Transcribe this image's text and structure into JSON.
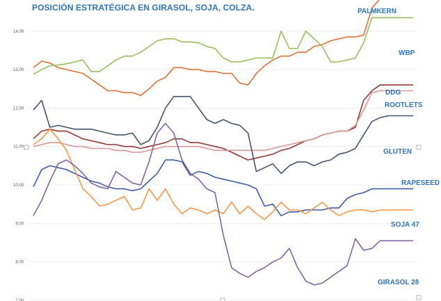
{
  "chart_data": {
    "type": "line",
    "title": "POSICIÓN ESTRATÉGICA EN GIRASOL, SOJA, COLZA.",
    "xlabel": "",
    "ylabel": "",
    "ylim": [
      7.0,
      14.9
    ],
    "yticks": [
      "14,00",
      "13,00",
      "12,00",
      "11,00",
      "10,00",
      "9,00",
      "8,00",
      "7,00"
    ],
    "x": [
      1,
      2,
      3,
      4,
      5,
      6,
      7,
      8,
      9,
      10,
      11,
      12,
      13,
      14,
      15,
      16,
      17,
      18,
      19,
      20,
      21,
      22,
      23,
      24,
      25,
      26,
      27,
      28,
      29,
      30,
      31,
      32,
      33,
      34,
      35,
      36,
      37,
      38,
      39,
      40,
      41,
      42,
      43,
      44,
      45,
      46,
      47
    ],
    "series": [
      {
        "name": "PALMKERN",
        "color": "#e07033",
        "values": [
          13.05,
          13.22,
          13.17,
          13.05,
          13.0,
          12.95,
          12.9,
          12.75,
          12.6,
          12.45,
          12.45,
          12.4,
          12.4,
          12.33,
          12.5,
          12.7,
          12.8,
          13.05,
          13.05,
          13.0,
          13.0,
          12.95,
          12.95,
          12.9,
          12.9,
          12.65,
          12.6,
          12.9,
          13.1,
          13.25,
          13.35,
          13.35,
          13.45,
          13.45,
          13.6,
          13.65,
          13.75,
          13.8,
          13.85,
          13.85,
          13.9,
          14.6,
          14.95,
          14.95,
          14.95,
          14.95,
          14.95
        ]
      },
      {
        "name": "WBP",
        "color": "#9bbb59",
        "values": [
          12.88,
          13.0,
          13.1,
          13.12,
          13.15,
          13.2,
          13.25,
          12.95,
          12.95,
          13.1,
          13.25,
          13.35,
          13.35,
          13.45,
          13.6,
          13.75,
          13.8,
          13.8,
          13.72,
          13.72,
          13.7,
          13.6,
          13.55,
          13.3,
          13.2,
          13.2,
          13.25,
          13.3,
          13.3,
          13.3,
          14.0,
          13.55,
          13.55,
          14.0,
          13.8,
          13.6,
          13.2,
          13.2,
          13.25,
          13.3,
          13.7,
          14.35,
          14.35,
          14.35,
          14.35,
          14.35,
          14.35
        ]
      },
      {
        "name": "DDG",
        "color": "#943634",
        "values": [
          11.2,
          11.4,
          11.45,
          11.4,
          11.4,
          11.3,
          11.2,
          11.15,
          11.1,
          11.05,
          11.05,
          11.0,
          11.0,
          10.95,
          11.0,
          11.05,
          11.1,
          11.2,
          11.2,
          11.1,
          11.1,
          11.05,
          11.0,
          10.95,
          10.85,
          10.75,
          10.65,
          10.7,
          10.75,
          10.8,
          10.9,
          10.95,
          11.05,
          11.15,
          11.2,
          11.3,
          11.35,
          11.4,
          11.4,
          11.5,
          12.2,
          12.45,
          12.6,
          12.6,
          12.6,
          12.6,
          12.6
        ]
      },
      {
        "name": "ROOTLETS",
        "color": "#da9694",
        "values": [
          11.0,
          11.05,
          11.1,
          11.1,
          11.05,
          11.0,
          11.0,
          10.95,
          10.95,
          10.95,
          10.9,
          10.9,
          10.85,
          10.85,
          10.9,
          10.95,
          11.0,
          11.0,
          11.0,
          11.0,
          11.0,
          10.95,
          10.9,
          10.9,
          10.9,
          10.9,
          10.9,
          10.9,
          10.9,
          10.95,
          11.0,
          11.05,
          11.1,
          11.15,
          11.2,
          11.3,
          11.35,
          11.4,
          11.4,
          11.55,
          11.95,
          12.4,
          12.45,
          12.45,
          12.45,
          12.45,
          12.45
        ]
      },
      {
        "name": "GLUTEN",
        "color": "#44546a",
        "values": [
          11.95,
          12.2,
          11.5,
          11.55,
          11.5,
          11.45,
          11.45,
          11.45,
          11.4,
          11.35,
          11.3,
          11.3,
          11.35,
          11.05,
          11.15,
          11.5,
          12.0,
          12.3,
          12.3,
          12.3,
          12.0,
          11.7,
          11.6,
          11.7,
          11.6,
          11.55,
          11.35,
          10.35,
          10.45,
          10.55,
          10.3,
          10.5,
          10.6,
          10.6,
          10.5,
          10.6,
          10.65,
          10.8,
          10.85,
          10.95,
          11.3,
          11.65,
          11.75,
          11.8,
          11.8,
          11.8,
          11.8
        ]
      },
      {
        "name": "RAPESEED",
        "color": "#3f5aa8",
        "values": [
          9.95,
          10.4,
          10.5,
          10.45,
          10.4,
          10.3,
          10.2,
          10.1,
          10.05,
          9.95,
          9.9,
          9.9,
          9.85,
          9.9,
          10.1,
          10.3,
          10.65,
          10.65,
          10.6,
          10.25,
          10.35,
          10.3,
          10.2,
          10.15,
          10.1,
          10.05,
          10.0,
          9.9,
          9.45,
          9.5,
          9.2,
          9.3,
          9.3,
          9.35,
          9.35,
          9.35,
          9.4,
          9.4,
          9.65,
          9.75,
          9.8,
          9.9,
          9.9,
          9.9,
          9.9,
          9.9,
          9.9
        ]
      },
      {
        "name": "SOJA 47",
        "color": "#f79646",
        "values": [
          11.05,
          11.2,
          11.45,
          11.2,
          10.9,
          10.4,
          9.9,
          9.7,
          9.45,
          9.5,
          9.6,
          9.7,
          9.35,
          9.4,
          9.9,
          9.6,
          9.9,
          9.5,
          9.25,
          9.4,
          9.35,
          9.25,
          9.35,
          9.25,
          9.55,
          9.25,
          9.45,
          9.25,
          9.1,
          9.3,
          9.55,
          9.35,
          9.35,
          9.25,
          9.4,
          9.55,
          9.35,
          9.2,
          9.3,
          9.35,
          9.35,
          9.3,
          9.35,
          9.35,
          9.35,
          9.35,
          9.35
        ]
      },
      {
        "name": "GIRASOL 28",
        "color": "#8064a2",
        "values": [
          9.2,
          9.6,
          10.1,
          10.55,
          10.65,
          10.5,
          10.3,
          10.05,
          9.95,
          9.9,
          10.35,
          10.2,
          10.05,
          10.0,
          10.6,
          11.35,
          11.6,
          11.35,
          10.65,
          10.3,
          10.15,
          9.9,
          9.8,
          8.7,
          7.85,
          7.7,
          7.6,
          7.75,
          7.85,
          8.0,
          8.1,
          8.35,
          7.85,
          7.5,
          7.4,
          7.45,
          7.6,
          7.75,
          7.9,
          8.6,
          8.3,
          8.35,
          8.55,
          8.55,
          8.55,
          8.55,
          8.55
        ]
      }
    ]
  }
}
